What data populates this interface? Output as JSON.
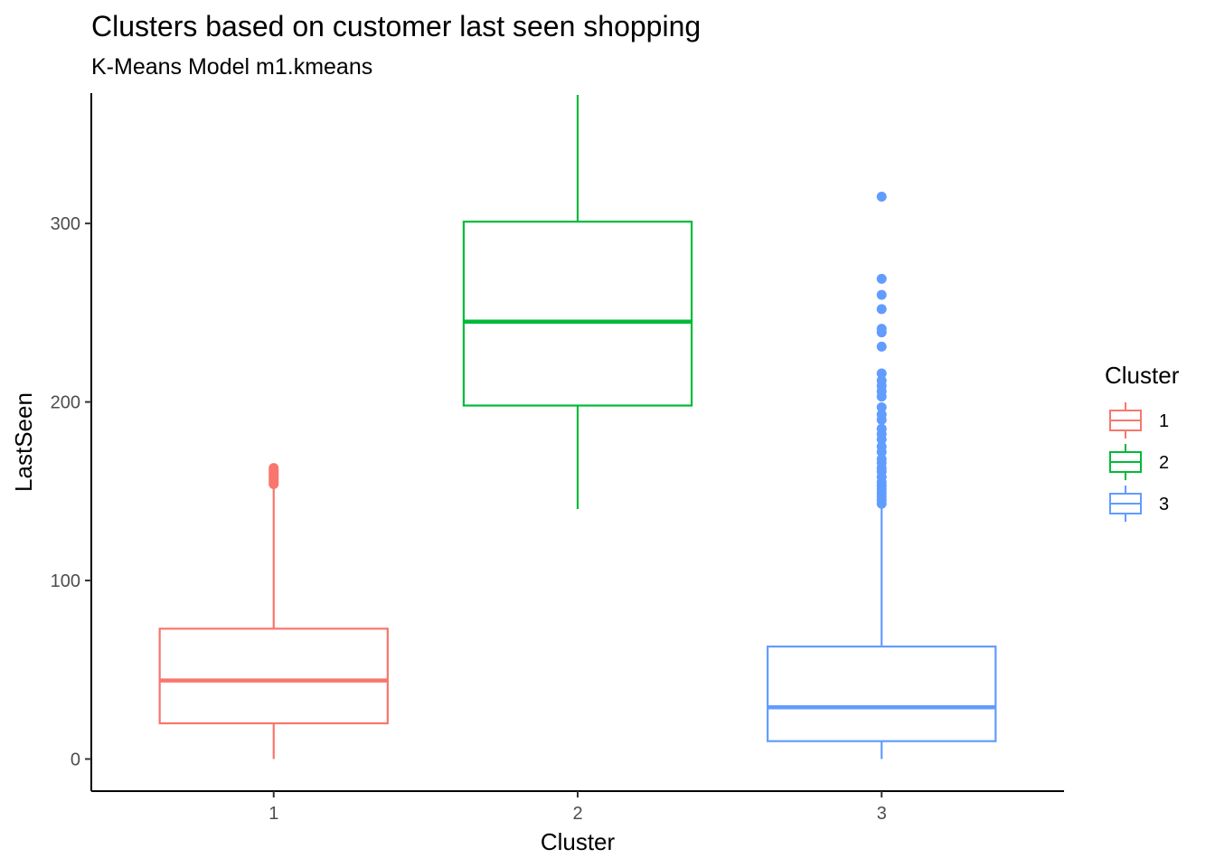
{
  "chart_data": {
    "type": "boxplot",
    "title": "Clusters based on customer last seen shopping",
    "subtitle": "K-Means Model m1.kmeans",
    "xlabel": "Cluster",
    "ylabel": "LastSeen",
    "categories": [
      "1",
      "2",
      "3"
    ],
    "ylim": [
      -18,
      373
    ],
    "yticks": [
      0,
      100,
      200,
      300
    ],
    "grid": false,
    "legend": {
      "title": "Cluster",
      "placement": "right",
      "entries": [
        "1",
        "2",
        "3"
      ]
    },
    "colors": [
      "#F8766D",
      "#00BA38",
      "#619CFF"
    ],
    "boxes": [
      {
        "category": "1",
        "min": 0,
        "q1": 20,
        "median": 44,
        "q3": 73,
        "max": 152,
        "outliers": [
          154,
          155,
          156,
          157,
          158,
          159,
          160,
          161,
          162,
          163
        ]
      },
      {
        "category": "2",
        "min": 140,
        "q1": 198,
        "median": 245,
        "q3": 301,
        "max": 372,
        "outliers": []
      },
      {
        "category": "3",
        "min": 0,
        "q1": 10,
        "median": 29,
        "q3": 63,
        "max": 141,
        "outliers": [
          143,
          145,
          147,
          149,
          151,
          153,
          155,
          158,
          161,
          163,
          166,
          168,
          172,
          175,
          179,
          182,
          185,
          190,
          193,
          197,
          203,
          206,
          209,
          212,
          216,
          231,
          239,
          241,
          252,
          260,
          269,
          315
        ]
      }
    ]
  }
}
